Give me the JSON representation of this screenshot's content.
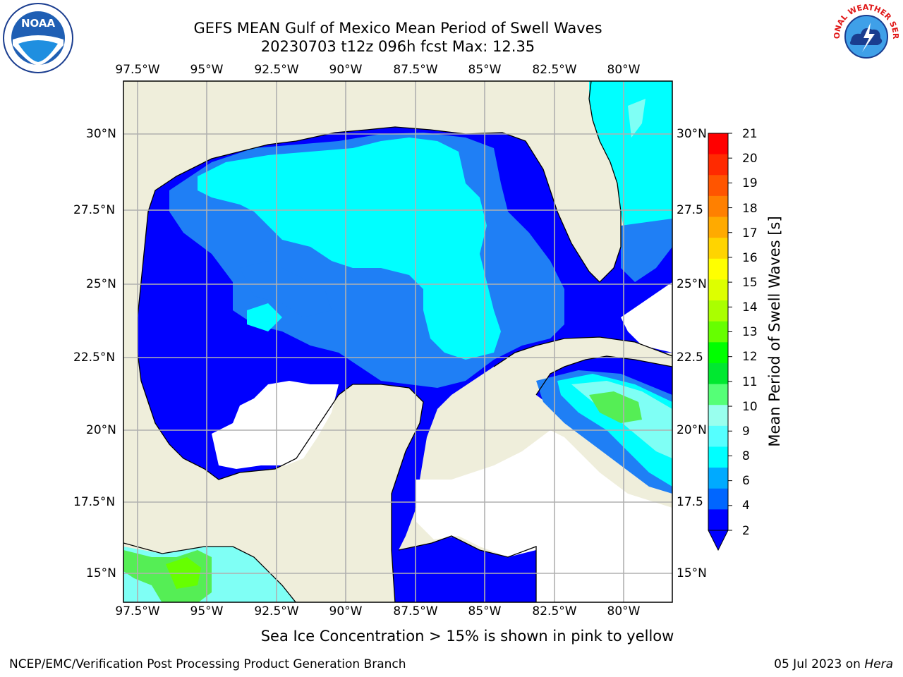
{
  "title_line1": "GEFS MEAN Gulf of Mexico Mean Period of Swell Waves",
  "title_line2": "20230703 t12z 096h fcst   Max: 12.35",
  "lon_labels": [
    "97.5°W",
    "95°W",
    "92.5°W",
    "90°W",
    "87.5°W",
    "85°W",
    "82.5°W",
    "80°W"
  ],
  "lat_labels_left": [
    "30°N",
    "27.5°N",
    "25°N",
    "22.5°N",
    "20°N",
    "17.5°N",
    "15°N"
  ],
  "lat_labels_right": [
    "30°N",
    "27.5",
    "25°N",
    "22.5",
    "20°N",
    "17.5",
    "15°N"
  ],
  "colorbar": {
    "title": "Mean Period of Swell Waves [s]",
    "ticks": [
      "21",
      "20",
      "19",
      "18",
      "17",
      "16",
      "15",
      "14",
      "13",
      "12",
      "11",
      "10",
      "9",
      "8",
      "6",
      "4",
      "2"
    ],
    "colors": [
      "#ff0000",
      "#ff2a00",
      "#ff5500",
      "#ff8000",
      "#ffaa00",
      "#ffd400",
      "#ffff00",
      "#ddff00",
      "#aaff00",
      "#66ff00",
      "#00ff00",
      "#00e830",
      "#55ff77",
      "#99ffee",
      "#55ffff",
      "#00ffff",
      "#00aaff",
      "#0066ff",
      "#0000ff"
    ],
    "extend": "min"
  },
  "note": "Sea Ice Concentration > 15% is shown in pink to yellow",
  "footer_left": "NCEP/EMC/Verification Post Processing Product Generation Branch",
  "footer_right_date": "05 Jul 2023 on",
  "footer_right_host": "Hera",
  "logos": {
    "left": "noaa-logo",
    "right": "nws-logo"
  },
  "logo_text": {
    "noaa": "NOAA",
    "nws": "NATIONAL WEATHER SERVICE"
  },
  "map_colors": {
    "land": "#efeedb",
    "dark_blue": "#0000ff",
    "mid_blue": "#1f7ff5",
    "cyan": "#00ffff",
    "light_cyan": "#7ffff5",
    "green": "#55ee55",
    "no_data": "#ffffff"
  }
}
